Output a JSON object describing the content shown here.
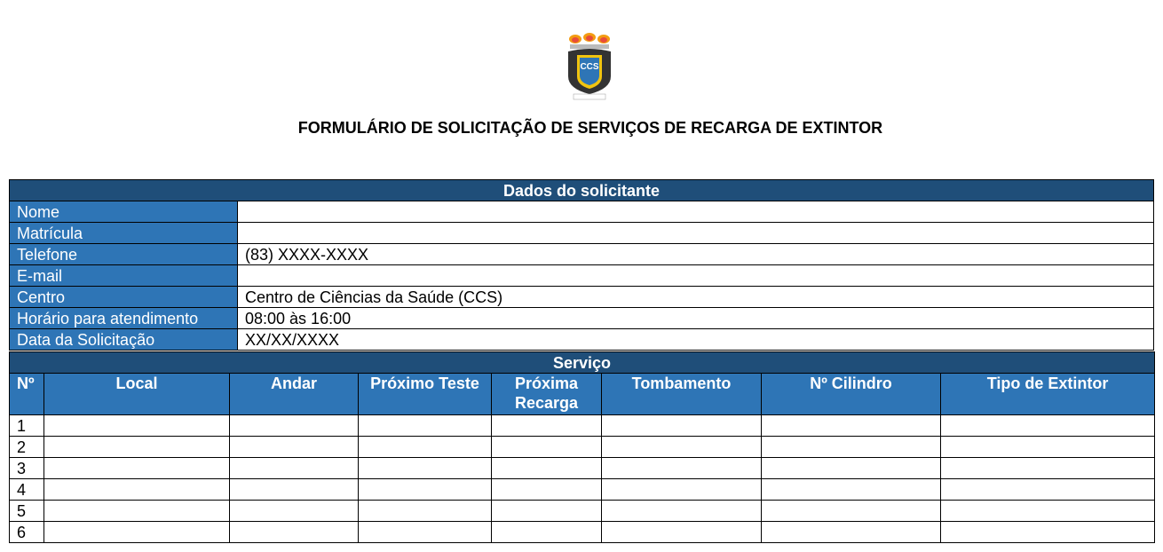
{
  "header": {
    "logo": "CCS",
    "title": "FORMULÁRIO DE SOLICITAÇÃO DE SERVIÇOS DE RECARGA DE EXTINTOR"
  },
  "solicitante": {
    "heading": "Dados do solicitante",
    "rows": [
      {
        "label": "Nome",
        "value": ""
      },
      {
        "label": "Matrícula",
        "value": ""
      },
      {
        "label": "Telefone",
        "value": "(83) XXXX-XXXX"
      },
      {
        "label": "E-mail",
        "value": ""
      },
      {
        "label": "Centro",
        "value": "Centro de Ciências da Saúde (CCS)"
      },
      {
        "label": "Horário para atendimento",
        "value": "08:00 às 16:00"
      },
      {
        "label": "Data da Solicitação",
        "value": "XX/XX/XXXX"
      }
    ]
  },
  "servico": {
    "heading": "Serviço",
    "columns": [
      "Nº",
      "Local",
      "Andar",
      "Próximo Teste",
      "Próxima Recarga",
      "Tombamento",
      "Nº Cilindro",
      "Tipo de Extintor"
    ],
    "rows": [
      "1",
      "2",
      "3",
      "4",
      "5",
      "6"
    ]
  },
  "colors": {
    "heading": "#1f4e79",
    "label": "#2e75b6"
  }
}
